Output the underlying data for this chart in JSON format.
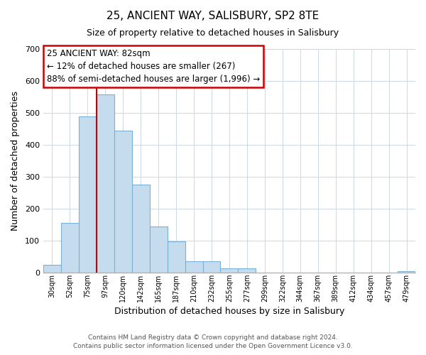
{
  "title": "25, ANCIENT WAY, SALISBURY, SP2 8TE",
  "subtitle": "Size of property relative to detached houses in Salisbury",
  "xlabel": "Distribution of detached houses by size in Salisbury",
  "ylabel": "Number of detached properties",
  "footer_line1": "Contains HM Land Registry data © Crown copyright and database right 2024.",
  "footer_line2": "Contains public sector information licensed under the Open Government Licence v3.0.",
  "annotation_title": "25 ANCIENT WAY: 82sqm",
  "annotation_line1": "← 12% of detached houses are smaller (267)",
  "annotation_line2": "88% of semi-detached houses are larger (1,996) →",
  "bar_labels": [
    "30sqm",
    "52sqm",
    "75sqm",
    "97sqm",
    "120sqm",
    "142sqm",
    "165sqm",
    "187sqm",
    "210sqm",
    "232sqm",
    "255sqm",
    "277sqm",
    "299sqm",
    "322sqm",
    "344sqm",
    "367sqm",
    "389sqm",
    "412sqm",
    "434sqm",
    "457sqm",
    "479sqm"
  ],
  "bar_values": [
    25,
    155,
    490,
    558,
    445,
    275,
    145,
    98,
    37,
    35,
    14,
    13,
    0,
    0,
    0,
    0,
    0,
    0,
    0,
    0,
    5
  ],
  "bar_color": "#c5dcee",
  "bar_edge_color": "#7ab0d4",
  "vline_color": "#cc0000",
  "vline_pos": 2.5,
  "ylim": [
    0,
    700
  ],
  "yticks": [
    0,
    100,
    200,
    300,
    400,
    500,
    600,
    700
  ],
  "bg_color": "#ffffff",
  "grid_color": "#c8d8e8"
}
